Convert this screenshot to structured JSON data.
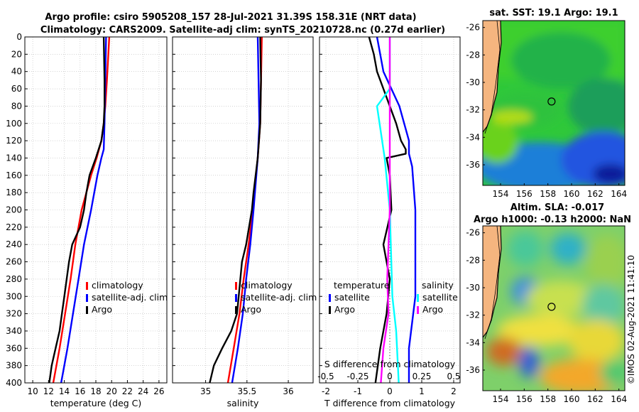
{
  "figure": {
    "title_line1": "Argo profile: csiro 5905208_157 28-Jul-2021 31.39S 158.31E (NRT data)",
    "title_line2": "Climatology: CARS2009. Satellite-adj clim: synTS_20210728.nc (0.27d earlier)",
    "watermark": "©IMOS 02-Aug-2021 11:41:10"
  },
  "colors": {
    "climatology": "#ff0000",
    "satellite": "#0000ff",
    "argo": "#000000",
    "salinity_satellite": "#00ffff",
    "salinity_argo": "#ff00ff",
    "land": "#f5b57f",
    "coast": "#000000"
  },
  "chart_data": [
    {
      "type": "line",
      "panel": "temperature",
      "xlabel": "temperature (deg C)",
      "ylabel": "",
      "xlim": [
        9,
        27
      ],
      "ylim": [
        400,
        0
      ],
      "xticks": [
        10,
        12,
        14,
        16,
        18,
        20,
        22,
        24,
        26
      ],
      "yticks": [
        0,
        20,
        40,
        60,
        80,
        100,
        120,
        140,
        160,
        180,
        200,
        220,
        240,
        260,
        280,
        300,
        320,
        340,
        360,
        380,
        400
      ],
      "grid": true,
      "legend": {
        "placement": "lower-right",
        "entries": [
          "climatology",
          "satellite-adj. clim",
          "Argo"
        ]
      },
      "series": [
        {
          "name": "climatology",
          "color_key": "climatology",
          "depth": [
            0,
            50,
            80,
            100,
            120,
            140,
            160,
            200,
            240,
            280,
            320,
            360,
            400
          ],
          "values": [
            19.7,
            19.4,
            19.2,
            19.0,
            18.7,
            18.1,
            17.4,
            16.2,
            15.4,
            14.8,
            14.1,
            13.4,
            12.6
          ]
        },
        {
          "name": "satellite-adj. clim",
          "color_key": "satellite",
          "depth": [
            0,
            50,
            100,
            130,
            140,
            160,
            200,
            240,
            280,
            320,
            360,
            400
          ],
          "values": [
            19.3,
            19.2,
            19.1,
            19.0,
            18.7,
            18.2,
            17.4,
            16.5,
            15.8,
            15.1,
            14.4,
            13.6
          ]
        },
        {
          "name": "Argo",
          "color_key": "argo",
          "depth": [
            0,
            50,
            80,
            100,
            120,
            140,
            160,
            180,
            200,
            220,
            240,
            260,
            280,
            300,
            320,
            340,
            360,
            380,
            400
          ],
          "values": [
            19.0,
            19.1,
            19.1,
            19.0,
            18.7,
            18.0,
            17.2,
            16.8,
            16.5,
            16.0,
            15.0,
            14.6,
            14.3,
            14.0,
            13.7,
            13.4,
            12.9,
            12.4,
            12.1
          ]
        }
      ]
    },
    {
      "type": "line",
      "panel": "salinity",
      "xlabel": "salinity",
      "xlim": [
        34.6,
        36.3
      ],
      "ylim": [
        400,
        0
      ],
      "xticks": [
        35,
        35.5,
        36
      ],
      "grid": true,
      "legend": {
        "placement": "lower-right",
        "entries": [
          "climatology",
          "satellite-adj. clim",
          "Argo"
        ]
      },
      "series": [
        {
          "name": "climatology",
          "color_key": "climatology",
          "depth": [
            0,
            100,
            140,
            200,
            240,
            280,
            320,
            360,
            400
          ],
          "values": [
            35.68,
            35.66,
            35.63,
            35.57,
            35.52,
            35.46,
            35.41,
            35.34,
            35.27
          ]
        },
        {
          "name": "satellite-adj. clim",
          "color_key": "satellite",
          "depth": [
            0,
            100,
            140,
            200,
            240,
            280,
            320,
            360,
            400
          ],
          "values": [
            35.63,
            35.65,
            35.63,
            35.58,
            35.54,
            35.49,
            35.45,
            35.39,
            35.32
          ]
        },
        {
          "name": "Argo",
          "color_key": "argo",
          "depth": [
            0,
            50,
            100,
            140,
            180,
            200,
            240,
            260,
            280,
            300,
            320,
            340,
            360,
            380,
            400
          ],
          "values": [
            35.66,
            35.67,
            35.66,
            35.63,
            35.58,
            35.56,
            35.49,
            35.44,
            35.42,
            35.4,
            35.38,
            35.31,
            35.2,
            35.1,
            35.05
          ]
        }
      ]
    },
    {
      "type": "line",
      "panel": "difference",
      "xlabel": "T difference from climatology",
      "xlabel_top": "S difference from climatology",
      "xlim": [
        -2.2,
        2.2
      ],
      "ylim": [
        400,
        0
      ],
      "xticks": [
        -2,
        -1,
        0,
        1,
        2
      ],
      "xticks_top_labels": [
        "-0.5",
        "-0.25",
        "0",
        "0.25",
        "0.5"
      ],
      "s_scale_factor": 4,
      "grid": true,
      "legend": {
        "placement": "lower-right",
        "temperature_title": "temperature",
        "salinity_title": "salinity",
        "entries": [
          "satellite",
          "Argo",
          "satellite",
          "Argo"
        ]
      },
      "series": [
        {
          "name": "temperature satellite",
          "color_key": "satellite",
          "quantity": "T",
          "depth": [
            0,
            40,
            80,
            120,
            135,
            150,
            200,
            300,
            360,
            400
          ],
          "values": [
            -0.4,
            -0.2,
            0.3,
            0.6,
            0.6,
            0.7,
            0.8,
            0.8,
            0.6,
            0.6
          ]
        },
        {
          "name": "temperature Argo",
          "color_key": "argo",
          "quantity": "T",
          "depth": [
            0,
            20,
            40,
            60,
            80,
            100,
            120,
            130,
            135,
            140,
            160,
            200,
            240,
            280,
            320,
            360,
            400
          ],
          "values": [
            -0.65,
            -0.5,
            -0.4,
            -0.2,
            0.0,
            0.2,
            0.35,
            0.5,
            0.5,
            -0.1,
            0.0,
            0.05,
            -0.2,
            0.0,
            -0.1,
            -0.3,
            -0.45
          ]
        },
        {
          "name": "salinity satellite",
          "color_key": "salinity_satellite",
          "quantity": "S",
          "depth": [
            0,
            60,
            80,
            140,
            200,
            300,
            340,
            400
          ],
          "values": [
            0.0,
            0.0,
            -0.1,
            -0.04,
            0.0,
            0.02,
            0.05,
            0.07
          ]
        },
        {
          "name": "salinity Argo",
          "color_key": "salinity_argo",
          "quantity": "S",
          "depth": [
            0,
            50,
            100,
            140,
            200,
            240,
            280,
            320,
            360,
            400
          ],
          "values": [
            0.0,
            0.0,
            0.0,
            0.0,
            0.0,
            -0.01,
            -0.02,
            -0.01,
            -0.05,
            -0.07
          ]
        }
      ]
    },
    {
      "type": "heatmap",
      "panel": "sst-map",
      "title": "sat. SST: 19.1 Argo: 19.1",
      "xlim": [
        152.5,
        164.5
      ],
      "ylim": [
        -37.5,
        -25.5
      ],
      "xticks": [
        154,
        156,
        158,
        160,
        162,
        164
      ],
      "yticks": [
        -26,
        -28,
        -30,
        -32,
        -34,
        -36
      ],
      "argo_position": {
        "lon": 158.31,
        "lat": -31.39
      }
    },
    {
      "type": "heatmap",
      "panel": "sla-map",
      "title_line1": "Altim. SLA: -0.017",
      "title_line2": "Argo h1000: -0.13 h2000: NaN",
      "xlim": [
        152.5,
        164.5
      ],
      "ylim": [
        -37.5,
        -25.5
      ],
      "xticks": [
        154,
        156,
        158,
        160,
        162,
        164
      ],
      "yticks": [
        -26,
        -28,
        -30,
        -32,
        -34,
        -36
      ],
      "argo_position": {
        "lon": 158.31,
        "lat": -31.39
      }
    }
  ]
}
